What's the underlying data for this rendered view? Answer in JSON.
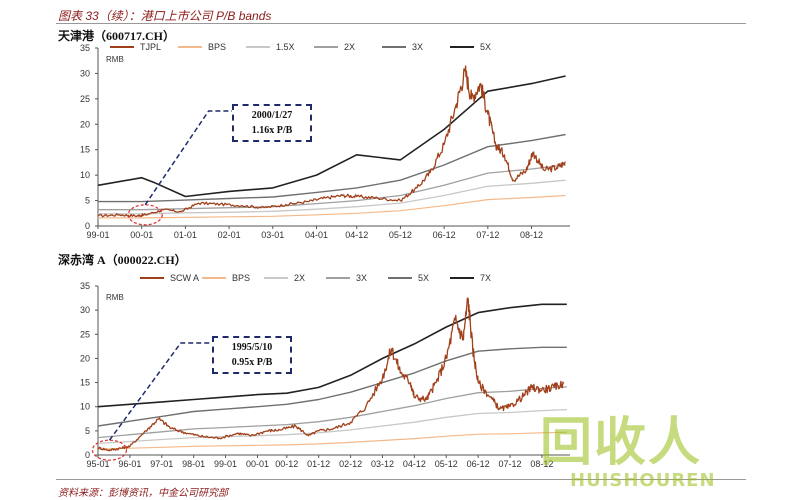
{
  "figure": {
    "title": "图表 33（续）：港口上市公司 P/B bands",
    "source": "资料来源：彭博资讯，中金公司研究部"
  },
  "watermark": {
    "main": "回收人",
    "sub": "HUISHOUREN"
  },
  "colors": {
    "price": "#a0401a",
    "bps": "#f4b98a",
    "band_light": "#c8c8c8",
    "band_mid": "#a0a0a0",
    "band_dark": "#707070",
    "band_black": "#222222",
    "annotation": "#1f2a6b",
    "circle": "#e03030"
  },
  "chart_data": [
    {
      "type": "line",
      "title": "天津港（600717.CH）",
      "ylabel": "RMB",
      "ylim": [
        0,
        35
      ],
      "yticks": [
        0,
        5,
        10,
        15,
        20,
        25,
        30,
        35
      ],
      "xlim": [
        1999.0,
        2009.8
      ],
      "xticks": [
        1999.0,
        2000.0,
        2001.0,
        2002.0,
        2003.0,
        2004.0,
        2004.92,
        2005.92,
        2006.92,
        2007.92,
        2008.92
      ],
      "xticklabels": [
        "99-01",
        "00-01",
        "01-01",
        "02-01",
        "03-01",
        "04-01",
        "04-12",
        "05-12",
        "06-12",
        "07-12",
        "08-12"
      ],
      "annotation": {
        "line1": "2000/1/27",
        "line2": "1.16x P/B",
        "x": 2000.08,
        "y": 2.2
      },
      "series": [
        {
          "name": "TJPL",
          "role": "price",
          "anchors": [
            [
              1999.0,
              2.0
            ],
            [
              1999.5,
              2.2
            ],
            [
              1999.9,
              2.0
            ],
            [
              2000.08,
              2.2
            ],
            [
              2000.5,
              3.2
            ],
            [
              2000.9,
              2.8
            ],
            [
              2001.3,
              4.5
            ],
            [
              2001.8,
              4.3
            ],
            [
              2002.3,
              4.0
            ],
            [
              2002.8,
              3.6
            ],
            [
              2003.3,
              4.2
            ],
            [
              2003.8,
              4.8
            ],
            [
              2004.2,
              5.5
            ],
            [
              2004.6,
              6.0
            ],
            [
              2004.92,
              5.8
            ],
            [
              2005.4,
              5.5
            ],
            [
              2005.92,
              5.0
            ],
            [
              2006.3,
              7.5
            ],
            [
              2006.6,
              10.5
            ],
            [
              2006.92,
              16.0
            ],
            [
              2007.2,
              24.0
            ],
            [
              2007.4,
              30.5
            ],
            [
              2007.55,
              25.0
            ],
            [
              2007.75,
              28.0
            ],
            [
              2007.92,
              22.0
            ],
            [
              2008.1,
              16.0
            ],
            [
              2008.3,
              14.0
            ],
            [
              2008.5,
              9.0
            ],
            [
              2008.8,
              11.0
            ],
            [
              2008.95,
              14.5
            ],
            [
              2009.2,
              11.0
            ],
            [
              2009.5,
              11.5
            ],
            [
              2009.7,
              12.5
            ]
          ]
        },
        {
          "name": "BPS",
          "role": "bps",
          "anchors": [
            [
              1999.0,
              1.6
            ],
            [
              2000.0,
              1.6
            ],
            [
              2001.0,
              1.7
            ],
            [
              2002.0,
              1.8
            ],
            [
              2003.0,
              1.9
            ],
            [
              2004.0,
              2.2
            ],
            [
              2004.92,
              2.5
            ],
            [
              2005.92,
              3.0
            ],
            [
              2006.92,
              4.0
            ],
            [
              2007.92,
              5.2
            ],
            [
              2008.92,
              5.6
            ],
            [
              2009.7,
              6.0
            ]
          ]
        },
        {
          "name": "1.5X",
          "role": "band_light",
          "anchors": [
            [
              1999.0,
              2.4
            ],
            [
              2000.0,
              2.4
            ],
            [
              2001.0,
              2.6
            ],
            [
              2002.0,
              2.7
            ],
            [
              2003.0,
              2.9
            ],
            [
              2004.0,
              3.3
            ],
            [
              2004.92,
              3.8
            ],
            [
              2005.92,
              4.5
            ],
            [
              2006.92,
              6.0
            ],
            [
              2007.92,
              7.8
            ],
            [
              2008.92,
              8.4
            ],
            [
              2009.7,
              9.0
            ]
          ]
        },
        {
          "name": "2X",
          "role": "band_mid",
          "anchors": [
            [
              1999.0,
              3.2
            ],
            [
              2000.0,
              3.2
            ],
            [
              2001.0,
              3.4
            ],
            [
              2002.0,
              3.6
            ],
            [
              2003.0,
              3.8
            ],
            [
              2004.0,
              4.4
            ],
            [
              2004.92,
              5.0
            ],
            [
              2005.92,
              6.0
            ],
            [
              2006.92,
              8.0
            ],
            [
              2007.92,
              10.4
            ],
            [
              2008.92,
              11.2
            ],
            [
              2009.7,
              12.0
            ]
          ]
        },
        {
          "name": "3X",
          "role": "band_dark",
          "anchors": [
            [
              1999.0,
              4.8
            ],
            [
              2000.0,
              4.8
            ],
            [
              2001.0,
              5.1
            ],
            [
              2002.0,
              5.4
            ],
            [
              2003.0,
              5.7
            ],
            [
              2004.0,
              6.6
            ],
            [
              2004.92,
              7.5
            ],
            [
              2005.92,
              9.0
            ],
            [
              2006.92,
              12.0
            ],
            [
              2007.92,
              15.6
            ],
            [
              2008.92,
              16.8
            ],
            [
              2009.7,
              18.0
            ]
          ]
        },
        {
          "name": "5X",
          "role": "band_black",
          "anchors": [
            [
              1999.0,
              8.0
            ],
            [
              2000.0,
              9.5
            ],
            [
              2000.3,
              8.5
            ],
            [
              2001.0,
              5.8
            ],
            [
              2002.0,
              6.8
            ],
            [
              2003.0,
              7.5
            ],
            [
              2004.0,
              10.0
            ],
            [
              2004.92,
              14.0
            ],
            [
              2005.92,
              13.0
            ],
            [
              2006.92,
              19.0
            ],
            [
              2007.92,
              26.5
            ],
            [
              2008.92,
              28.0
            ],
            [
              2009.7,
              29.5
            ]
          ]
        }
      ]
    },
    {
      "type": "line",
      "title": "深赤湾 A（000022.CH）",
      "ylabel": "RMB",
      "ylim": [
        0,
        35
      ],
      "yticks": [
        0,
        5,
        10,
        15,
        20,
        25,
        30,
        35
      ],
      "xlim": [
        1995.0,
        2009.8
      ],
      "xticks": [
        1995.0,
        1996.0,
        1997.0,
        1998.0,
        1999.0,
        2000.0,
        2000.92,
        2001.92,
        2002.92,
        2003.92,
        2004.92,
        2005.92,
        2006.92,
        2007.92,
        2008.92
      ],
      "xticklabels": [
        "95-01",
        "96-01",
        "97-01",
        "98-01",
        "99-01",
        "00-01",
        "00-12",
        "01-12",
        "02-12",
        "03-12",
        "04-12",
        "05-12",
        "06-12",
        "07-12",
        "08-12"
      ],
      "annotation": {
        "line1": "1995/5/10",
        "line2": "0.95x P/B",
        "x": 1995.36,
        "y": 1.0
      },
      "series": [
        {
          "name": "SCW A",
          "role": "price",
          "anchors": [
            [
              1995.0,
              1.5
            ],
            [
              1995.36,
              1.0
            ],
            [
              1995.7,
              1.4
            ],
            [
              1996.0,
              1.8
            ],
            [
              1996.5,
              5.0
            ],
            [
              1996.9,
              7.5
            ],
            [
              1997.3,
              5.5
            ],
            [
              1997.8,
              4.5
            ],
            [
              1998.3,
              3.8
            ],
            [
              1998.8,
              3.5
            ],
            [
              1999.4,
              4.5
            ],
            [
              1999.8,
              4.0
            ],
            [
              2000.3,
              5.0
            ],
            [
              2000.7,
              5.2
            ],
            [
              2001.2,
              6.0
            ],
            [
              2001.6,
              4.0
            ],
            [
              2001.92,
              5.0
            ],
            [
              2002.4,
              5.5
            ],
            [
              2002.92,
              6.8
            ],
            [
              2003.4,
              10.0
            ],
            [
              2003.92,
              16.0
            ],
            [
              2004.2,
              22.0
            ],
            [
              2004.5,
              17.0
            ],
            [
              2004.8,
              15.0
            ],
            [
              2004.92,
              12.0
            ],
            [
              2005.3,
              11.5
            ],
            [
              2005.6,
              15.0
            ],
            [
              2005.92,
              20.0
            ],
            [
              2006.2,
              28.0
            ],
            [
              2006.45,
              24.0
            ],
            [
              2006.6,
              32.5
            ],
            [
              2006.75,
              22.0
            ],
            [
              2006.92,
              15.0
            ],
            [
              2007.3,
              12.0
            ],
            [
              2007.6,
              9.5
            ],
            [
              2007.92,
              10.0
            ],
            [
              2008.3,
              12.0
            ],
            [
              2008.6,
              14.0
            ],
            [
              2008.92,
              13.5
            ],
            [
              2009.3,
              14.0
            ],
            [
              2009.6,
              14.8
            ]
          ]
        },
        {
          "name": "BPS",
          "role": "bps",
          "anchors": [
            [
              1995.0,
              1.2
            ],
            [
              1996.0,
              1.4
            ],
            [
              1997.0,
              1.6
            ],
            [
              1998.0,
              1.8
            ],
            [
              1999.0,
              1.9
            ],
            [
              2000.0,
              2.0
            ],
            [
              2000.92,
              2.1
            ],
            [
              2001.92,
              2.3
            ],
            [
              2002.92,
              2.6
            ],
            [
              2003.92,
              3.0
            ],
            [
              2004.92,
              3.4
            ],
            [
              2005.92,
              3.9
            ],
            [
              2006.92,
              4.3
            ],
            [
              2007.92,
              4.4
            ],
            [
              2008.92,
              4.6
            ],
            [
              2009.7,
              4.7
            ]
          ]
        },
        {
          "name": "2X",
          "role": "band_light",
          "anchors": [
            [
              1995.0,
              2.4
            ],
            [
              1996.0,
              2.8
            ],
            [
              1997.0,
              3.2
            ],
            [
              1998.0,
              3.6
            ],
            [
              1999.0,
              3.8
            ],
            [
              2000.0,
              4.0
            ],
            [
              2000.92,
              4.2
            ],
            [
              2001.92,
              4.6
            ],
            [
              2002.92,
              5.2
            ],
            [
              2003.92,
              6.0
            ],
            [
              2004.92,
              6.8
            ],
            [
              2005.92,
              7.8
            ],
            [
              2006.92,
              8.6
            ],
            [
              2007.92,
              8.8
            ],
            [
              2008.92,
              9.2
            ],
            [
              2009.7,
              9.4
            ]
          ]
        },
        {
          "name": "3X",
          "role": "band_mid",
          "anchors": [
            [
              1995.0,
              3.6
            ],
            [
              1996.0,
              4.2
            ],
            [
              1997.0,
              4.8
            ],
            [
              1998.0,
              5.4
            ],
            [
              1999.0,
              5.7
            ],
            [
              2000.0,
              6.0
            ],
            [
              2000.92,
              6.3
            ],
            [
              2001.92,
              6.9
            ],
            [
              2002.92,
              7.8
            ],
            [
              2003.92,
              9.0
            ],
            [
              2004.92,
              10.2
            ],
            [
              2005.92,
              11.7
            ],
            [
              2006.92,
              12.9
            ],
            [
              2007.92,
              13.2
            ],
            [
              2008.92,
              13.8
            ],
            [
              2009.7,
              14.1
            ]
          ]
        },
        {
          "name": "5X",
          "role": "band_dark",
          "anchors": [
            [
              1995.0,
              6.0
            ],
            [
              1996.0,
              7.0
            ],
            [
              1997.0,
              8.0
            ],
            [
              1998.0,
              9.0
            ],
            [
              1999.0,
              9.5
            ],
            [
              2000.0,
              10.0
            ],
            [
              2000.92,
              10.5
            ],
            [
              2001.92,
              11.5
            ],
            [
              2002.92,
              13.0
            ],
            [
              2003.92,
              15.0
            ],
            [
              2004.92,
              17.0
            ],
            [
              2005.92,
              19.5
            ],
            [
              2006.92,
              21.5
            ],
            [
              2007.92,
              22.0
            ],
            [
              2008.92,
              22.3
            ],
            [
              2009.7,
              22.3
            ]
          ]
        },
        {
          "name": "7X",
          "role": "band_black",
          "anchors": [
            [
              1995.0,
              10.0
            ],
            [
              1996.0,
              10.5
            ],
            [
              1997.0,
              11.0
            ],
            [
              1998.0,
              11.5
            ],
            [
              1999.0,
              12.0
            ],
            [
              2000.0,
              12.5
            ],
            [
              2000.92,
              12.8
            ],
            [
              2001.92,
              14.0
            ],
            [
              2002.92,
              16.5
            ],
            [
              2003.92,
              20.0
            ],
            [
              2004.92,
              23.0
            ],
            [
              2005.92,
              26.5
            ],
            [
              2006.92,
              29.5
            ],
            [
              2007.92,
              30.5
            ],
            [
              2008.92,
              31.2
            ],
            [
              2009.7,
              31.2
            ]
          ]
        }
      ]
    }
  ]
}
